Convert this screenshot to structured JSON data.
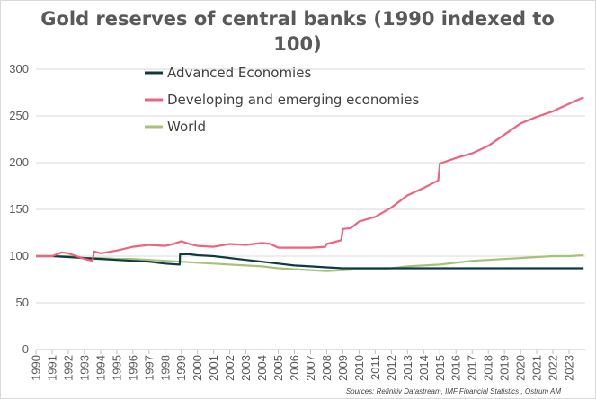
{
  "chart_data": {
    "type": "line",
    "title_lines": [
      "Gold reserves of central banks (1990 indexed to",
      "100)"
    ],
    "xlabel": "",
    "ylabel": "",
    "ylim": [
      0,
      300
    ],
    "yticks": [
      0,
      50,
      100,
      150,
      200,
      250,
      300
    ],
    "xlim": [
      1990,
      2024
    ],
    "x_tick_labels": [
      "1990",
      "1991",
      "1992",
      "1993",
      "1994",
      "1995",
      "1996",
      "1997",
      "1998",
      "1999",
      "2000",
      "2001",
      "2002",
      "2003",
      "2004",
      "2005",
      "2006",
      "2007",
      "2008",
      "2009",
      "2010",
      "2011",
      "2012",
      "2013",
      "2014",
      "2015",
      "2016",
      "2017",
      "2018",
      "2019",
      "2020",
      "2021",
      "2022",
      "2023"
    ],
    "grid": true,
    "legend_position": "top-left",
    "series": [
      {
        "name": "Advanced Economies",
        "color": "#0e3b43",
        "x": [
          1990,
          1991,
          1992,
          1993,
          1994,
          1995,
          1996,
          1997,
          1998,
          1998.9,
          1998.92,
          1999.5,
          2000,
          2001,
          2002,
          2003,
          2004,
          2005,
          2006,
          2007,
          2008,
          2009,
          2010,
          2011,
          2012,
          2013,
          2014,
          2015,
          2016,
          2017,
          2018,
          2019,
          2020,
          2021,
          2022,
          2023,
          2023.9
        ],
        "values": [
          100,
          100,
          99,
          98,
          97,
          96,
          95,
          94,
          92,
          91,
          102,
          102,
          101,
          100,
          98,
          96,
          94,
          92,
          90,
          89,
          88,
          87,
          87,
          87,
          87,
          87,
          87,
          87,
          87,
          87,
          87,
          87,
          87,
          87,
          87,
          87,
          87
        ]
      },
      {
        "name": "Developing and emerging economies",
        "color": "#f0627e",
        "x": [
          1990,
          1991,
          1991.6,
          1992,
          1992.5,
          1993,
          1993.5,
          1993.6,
          1994,
          1995,
          1996,
          1997,
          1998,
          1998.5,
          1999,
          1999.5,
          2000,
          2001,
          2002,
          2003,
          2004,
          2004.5,
          2005,
          2006,
          2007,
          2007.9,
          2008,
          2008.9,
          2009,
          2009.5,
          2010,
          2011,
          2012,
          2013,
          2014,
          2014.9,
          2015,
          2016,
          2017,
          2018,
          2019,
          2020,
          2021,
          2022,
          2023,
          2023.9
        ],
        "values": [
          100,
          100,
          104,
          103,
          100,
          97,
          95,
          105,
          103,
          106,
          110,
          112,
          111,
          113,
          116,
          113,
          111,
          110,
          113,
          112,
          114,
          113,
          109,
          109,
          109,
          110,
          113,
          117,
          129,
          130,
          137,
          142,
          152,
          165,
          173,
          181,
          199,
          205,
          210,
          218,
          230,
          242,
          249,
          255,
          263,
          270
        ]
      },
      {
        "name": "World",
        "color": "#a6c279",
        "x": [
          1990,
          1991,
          1992,
          1993,
          1994,
          1995,
          1996,
          1997,
          1998,
          1999,
          2000,
          2001,
          2002,
          2003,
          2004,
          2005,
          2006,
          2007,
          2008,
          2009,
          2010,
          2011,
          2012,
          2013,
          2014,
          2015,
          2016,
          2017,
          2018,
          2019,
          2020,
          2021,
          2022,
          2023,
          2023.9
        ],
        "values": [
          100,
          100,
          100,
          98,
          98,
          97,
          97,
          96,
          95,
          94,
          93,
          92,
          91,
          90,
          89,
          87,
          86,
          85,
          84,
          85,
          86,
          86,
          87,
          89,
          90,
          91,
          93,
          95,
          96,
          97,
          98,
          99,
          100,
          100,
          101
        ]
      }
    ]
  },
  "source_note": "Sources: Refinitiv Datastream, IMF Financial Statistics , Ostrum AM"
}
